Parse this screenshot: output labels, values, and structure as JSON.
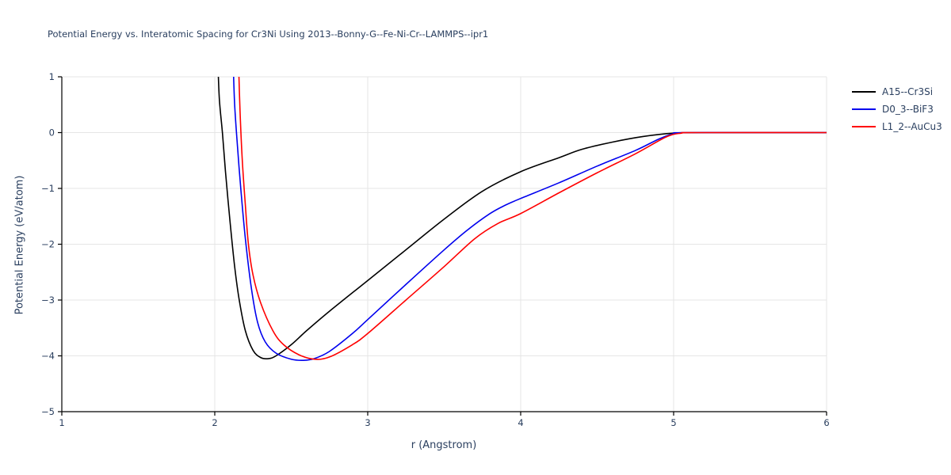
{
  "colors": {
    "text": "#2a3f5f",
    "grid": "#e5e5e5",
    "axis": "#000000",
    "background": "#ffffff"
  },
  "legend": {
    "entries": [
      {
        "label": "A15--Cr3Si",
        "color": "#000000"
      },
      {
        "label": "D0_3--BiF3",
        "color": "#0000ee"
      },
      {
        "label": "L1_2--AuCu3",
        "color": "#ff0000"
      }
    ]
  },
  "chart_data": {
    "type": "line",
    "title": "Potential Energy vs. Interatomic Spacing for Cr3Ni Using 2013--Bonny-G--Fe-Ni-Cr--LAMMPS--ipr1",
    "xlabel": "r (Angstrom)",
    "ylabel": "Potential Energy (eV/atom)",
    "xlim": [
      1,
      6
    ],
    "ylim": [
      -5,
      1
    ],
    "xticks": [
      1,
      2,
      3,
      4,
      5,
      6
    ],
    "xtick_labels": [
      "1",
      "2",
      "3",
      "4",
      "5",
      "6"
    ],
    "yticks": [
      1,
      0,
      -1,
      -2,
      -3,
      -4,
      -5
    ],
    "ytick_labels": [
      "1",
      "0",
      "−1",
      "−2",
      "−3",
      "−4",
      "−5"
    ],
    "grid": true,
    "legend_position": "outside-top-right",
    "series": [
      {
        "name": "A15--Cr3Si",
        "color": "#000000",
        "points": [
          [
            2.02,
            1.3
          ],
          [
            2.03,
            0.6
          ],
          [
            2.05,
            0.0
          ],
          [
            2.07,
            -0.7
          ],
          [
            2.1,
            -1.6
          ],
          [
            2.13,
            -2.4
          ],
          [
            2.16,
            -3.0
          ],
          [
            2.2,
            -3.55
          ],
          [
            2.25,
            -3.9
          ],
          [
            2.3,
            -4.03
          ],
          [
            2.35,
            -4.05
          ],
          [
            2.4,
            -4.0
          ],
          [
            2.5,
            -3.8
          ],
          [
            2.6,
            -3.55
          ],
          [
            2.75,
            -3.2
          ],
          [
            3.0,
            -2.65
          ],
          [
            3.25,
            -2.1
          ],
          [
            3.5,
            -1.55
          ],
          [
            3.75,
            -1.05
          ],
          [
            4.0,
            -0.7
          ],
          [
            4.25,
            -0.45
          ],
          [
            4.4,
            -0.3
          ],
          [
            4.6,
            -0.17
          ],
          [
            4.8,
            -0.07
          ],
          [
            5.0,
            -0.01
          ],
          [
            5.2,
            0.0
          ],
          [
            6.0,
            0.0
          ]
        ]
      },
      {
        "name": "D0_3--BiF3",
        "color": "#0000ee",
        "points": [
          [
            2.12,
            1.3
          ],
          [
            2.13,
            0.5
          ],
          [
            2.15,
            -0.3
          ],
          [
            2.17,
            -1.0
          ],
          [
            2.2,
            -1.9
          ],
          [
            2.24,
            -2.8
          ],
          [
            2.28,
            -3.4
          ],
          [
            2.33,
            -3.75
          ],
          [
            2.4,
            -3.95
          ],
          [
            2.5,
            -4.06
          ],
          [
            2.58,
            -4.08
          ],
          [
            2.65,
            -4.05
          ],
          [
            2.75,
            -3.92
          ],
          [
            2.9,
            -3.6
          ],
          [
            3.0,
            -3.35
          ],
          [
            3.25,
            -2.72
          ],
          [
            3.5,
            -2.1
          ],
          [
            3.65,
            -1.75
          ],
          [
            3.8,
            -1.45
          ],
          [
            3.9,
            -1.3
          ],
          [
            4.0,
            -1.18
          ],
          [
            4.25,
            -0.9
          ],
          [
            4.5,
            -0.6
          ],
          [
            4.75,
            -0.32
          ],
          [
            4.9,
            -0.12
          ],
          [
            5.0,
            -0.02
          ],
          [
            5.1,
            0.0
          ],
          [
            6.0,
            0.0
          ]
        ]
      },
      {
        "name": "L1_2--AuCu3",
        "color": "#ff0000",
        "points": [
          [
            2.155,
            1.3
          ],
          [
            2.165,
            0.4
          ],
          [
            2.18,
            -0.5
          ],
          [
            2.2,
            -1.3
          ],
          [
            2.22,
            -2.0
          ],
          [
            2.25,
            -2.55
          ],
          [
            2.3,
            -3.05
          ],
          [
            2.38,
            -3.55
          ],
          [
            2.45,
            -3.8
          ],
          [
            2.55,
            -3.98
          ],
          [
            2.65,
            -4.06
          ],
          [
            2.75,
            -4.02
          ],
          [
            2.9,
            -3.8
          ],
          [
            3.0,
            -3.6
          ],
          [
            3.25,
            -3.0
          ],
          [
            3.5,
            -2.4
          ],
          [
            3.7,
            -1.9
          ],
          [
            3.85,
            -1.63
          ],
          [
            4.0,
            -1.45
          ],
          [
            4.25,
            -1.08
          ],
          [
            4.5,
            -0.72
          ],
          [
            4.75,
            -0.38
          ],
          [
            4.95,
            -0.08
          ],
          [
            5.05,
            -0.01
          ],
          [
            5.15,
            0.0
          ],
          [
            6.0,
            0.0
          ]
        ]
      }
    ]
  }
}
